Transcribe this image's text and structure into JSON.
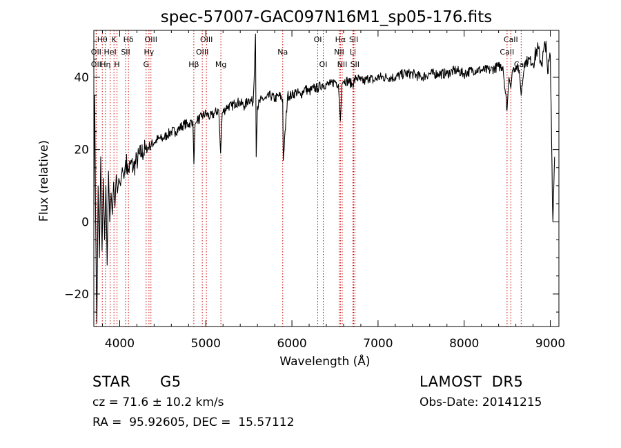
{
  "chart_data": {
    "type": "line",
    "title": "spec-57007-GAC097N16M1_sp05-176.fits",
    "xlabel": "Wavelength (Å)",
    "ylabel": "Flux (relative)",
    "xlim": [
      3700,
      9100
    ],
    "ylim": [
      -29,
      53
    ],
    "xticks": [
      4000,
      5000,
      6000,
      7000,
      8000,
      9000
    ],
    "xtick_labels": [
      "4000",
      "5000",
      "6000",
      "7000",
      "8000",
      "9000"
    ],
    "yticks": [
      -20,
      0,
      20,
      40
    ],
    "ytick_labels": [
      "−20",
      "0",
      "20",
      "40"
    ],
    "grid": false,
    "spectrum_color": "#000000",
    "line_marker_color": "#cc0000",
    "series": [
      {
        "x": [
          3700,
          3710,
          3720,
          3735,
          3750,
          3765,
          3780,
          3795,
          3810,
          3825,
          3840,
          3855,
          3870,
          3885,
          3900,
          3915,
          3930,
          3945,
          3960,
          3975,
          3990,
          4010,
          4030,
          4050,
          4070,
          4100,
          4130,
          4160,
          4200,
          4250,
          4300,
          4350,
          4400,
          4450,
          4500,
          4550,
          4600,
          4650,
          4700,
          4750,
          4800,
          4850,
          4862,
          4875,
          4900,
          4950,
          5000,
          5050,
          5100,
          5150,
          5172,
          5190,
          5250,
          5300,
          5350,
          5400,
          5450,
          5500,
          5550,
          5577,
          5585,
          5600,
          5650,
          5700,
          5750,
          5800,
          5850,
          5893,
          5900,
          5950,
          6000,
          6050,
          6100,
          6150,
          6200,
          6250,
          6300,
          6350,
          6400,
          6450,
          6500,
          6540,
          6563,
          6580,
          6600,
          6650,
          6700,
          6750,
          6800,
          6850,
          6900,
          6950,
          7000,
          7100,
          7200,
          7300,
          7400,
          7500,
          7600,
          7700,
          7800,
          7900,
          8000,
          8100,
          8200,
          8300,
          8400,
          8450,
          8498,
          8520,
          8542,
          8560,
          8600,
          8640,
          8662,
          8700,
          8750,
          8800,
          8850,
          8900,
          8950,
          8970,
          9000,
          9030,
          9050
        ],
        "y": [
          5,
          35,
          2,
          -28,
          10,
          -10,
          18,
          -8,
          12,
          -5,
          10,
          -12,
          14,
          0,
          8,
          2,
          11,
          4,
          13,
          8,
          12,
          10,
          15,
          12,
          17,
          14,
          16,
          15,
          17,
          19,
          20,
          21,
          22,
          23,
          23,
          24,
          25,
          25,
          26,
          27,
          27,
          28,
          16,
          27,
          28,
          29,
          30,
          29,
          30,
          31,
          19,
          30,
          32,
          32,
          33,
          33,
          32,
          34,
          33,
          52,
          18,
          32,
          34,
          34,
          35,
          34,
          35,
          34,
          17,
          35,
          35,
          36,
          35,
          37,
          36,
          37,
          37,
          38,
          38,
          38,
          39,
          38,
          28,
          38,
          39,
          39,
          38,
          40,
          39,
          39,
          40,
          39,
          40,
          40,
          40,
          41,
          41,
          40,
          41,
          41,
          41,
          42,
          41,
          42,
          42,
          42,
          43,
          43,
          31,
          40,
          37,
          42,
          43,
          42,
          35,
          44,
          45,
          44,
          48,
          44,
          50,
          41,
          46,
          0,
          18
        ]
      }
    ],
    "line_markers": [
      {
        "label": "Hθ",
        "wavelength": 3798,
        "row": 0
      },
      {
        "label": "OII",
        "wavelength": 3727,
        "row": 1
      },
      {
        "label": "OII",
        "wavelength": 3727,
        "row": 2
      },
      {
        "label": "K",
        "wavelength": 3934,
        "row": 0
      },
      {
        "label": "HeI",
        "wavelength": 3889,
        "row": 1
      },
      {
        "label": "Hη",
        "wavelength": 3835,
        "row": 2
      },
      {
        "label": "H",
        "wavelength": 3969,
        "row": 2
      },
      {
        "label": "Hδ",
        "wavelength": 4102,
        "row": 0
      },
      {
        "label": "SII",
        "wavelength": 4069,
        "row": 1
      },
      {
        "label": "OIII",
        "wavelength": 4363,
        "row": 0
      },
      {
        "label": "Hγ",
        "wavelength": 4340,
        "row": 1
      },
      {
        "label": "G",
        "wavelength": 4307,
        "row": 2
      },
      {
        "label": "Hβ",
        "wavelength": 4861,
        "row": 2
      },
      {
        "label": "OIII",
        "wavelength": 5007,
        "row": 0
      },
      {
        "label": "OIII",
        "wavelength": 4959,
        "row": 1
      },
      {
        "label": "Mg",
        "wavelength": 5175,
        "row": 2
      },
      {
        "label": "Na",
        "wavelength": 5893,
        "row": 1
      },
      {
        "label": "OI",
        "wavelength": 6300,
        "row": 0
      },
      {
        "label": "OI",
        "wavelength": 6364,
        "row": 2
      },
      {
        "label": "Hα",
        "wavelength": 6563,
        "row": 0
      },
      {
        "label": "NII",
        "wavelength": 6548,
        "row": 1
      },
      {
        "label": "NII",
        "wavelength": 6584,
        "row": 2
      },
      {
        "label": "SII",
        "wavelength": 6717,
        "row": 0
      },
      {
        "label": "Li",
        "wavelength": 6708,
        "row": 1
      },
      {
        "label": "SII",
        "wavelength": 6731,
        "row": 2
      },
      {
        "label": "CaII",
        "wavelength": 8542,
        "row": 0
      },
      {
        "label": "CaII",
        "wavelength": 8498,
        "row": 1
      },
      {
        "label": "CaII",
        "wavelength": 8662,
        "row": 2
      }
    ]
  },
  "info": {
    "object_class": "STAR",
    "subclass": "G5",
    "survey": "LAMOST  DR5",
    "redshift": "cz = 71.6 ± 10.2 km/s",
    "obs_date": "Obs-Date: 20141215",
    "coords": "RA =  95.92605, DEC =  15.57112"
  }
}
